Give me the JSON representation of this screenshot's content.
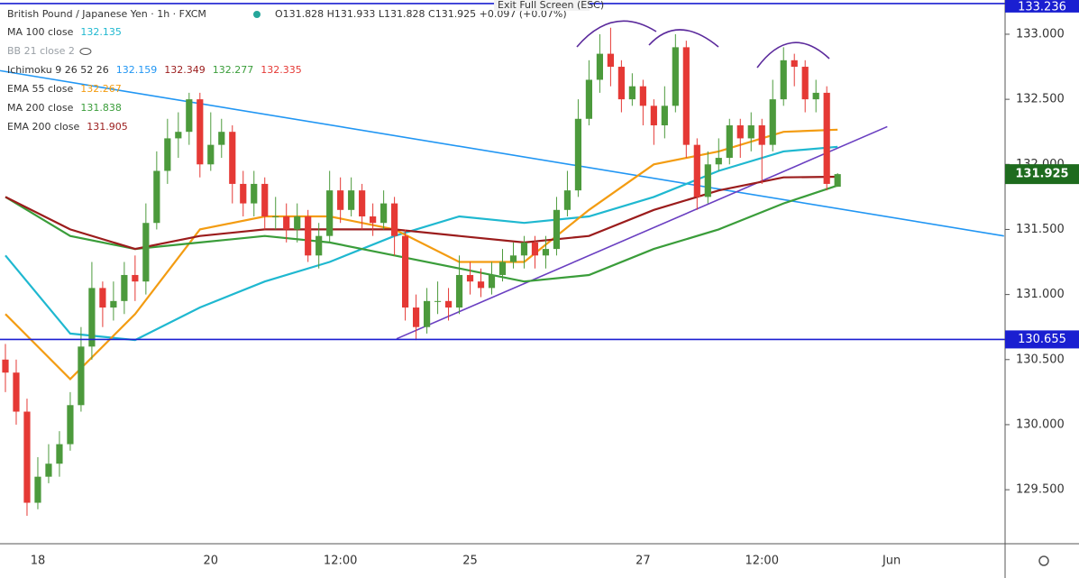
{
  "chart_data": {
    "type": "candlestick",
    "header": {
      "title": "British Pound / Japanese Yen · 1h · FXCM",
      "ohlc_text": "O131.828 H131.933 L131.828 C131.925 +0.097 (+0.07%)",
      "overlay": "Exit Full Screen (ESC)"
    },
    "categories": [
      null,
      null,
      null,
      "18",
      null,
      null,
      null,
      null,
      null,
      null,
      null,
      null,
      null,
      null,
      null,
      null,
      null,
      null,
      null,
      "20",
      null,
      null,
      null,
      null,
      null,
      null,
      null,
      null,
      null,
      null,
      null,
      "12:00",
      null,
      null,
      null,
      null,
      null,
      null,
      null,
      null,
      null,
      null,
      null,
      "25",
      null,
      null,
      null,
      null,
      null,
      null,
      null,
      null,
      null,
      null,
      null,
      null,
      null,
      null,
      null,
      "27",
      null,
      null,
      null,
      null,
      null,
      null,
      null,
      null,
      null,
      null,
      "12:00",
      null,
      null,
      null,
      null,
      null,
      null,
      null,
      null,
      null,
      null,
      null,
      "Jun",
      null,
      null,
      null,
      null,
      null,
      null,
      null,
      null,
      null,
      null
    ],
    "open": [
      130.5,
      130.4,
      130.1,
      129.4,
      129.6,
      129.7,
      129.85,
      130.15,
      130.6,
      131.05,
      130.9,
      130.95,
      131.15,
      131.1,
      131.55,
      131.95,
      132.2,
      132.25,
      132.5,
      132.0,
      132.15,
      132.25,
      131.85,
      131.7,
      131.85,
      131.6,
      131.6,
      131.5,
      131.6,
      131.3,
      131.45,
      131.8,
      131.65,
      131.8,
      131.6,
      131.55,
      131.7,
      131.45,
      130.9,
      130.75,
      130.95,
      130.95,
      130.9,
      131.15,
      131.1,
      131.05,
      131.15,
      131.25,
      131.3,
      131.4,
      131.3,
      131.35,
      131.65,
      131.8,
      132.35,
      132.65,
      132.85,
      132.75,
      132.5,
      132.6,
      132.45,
      132.3,
      132.45,
      132.9,
      132.15,
      131.75,
      132.0,
      132.05,
      132.3,
      132.2,
      132.3,
      132.15,
      132.5,
      132.8,
      132.75,
      132.5,
      132.55,
      131.828,
      null,
      null,
      null,
      null,
      null,
      null,
      null,
      null,
      null,
      null,
      null,
      null,
      null,
      null,
      null
    ],
    "high": [
      130.62,
      130.5,
      130.2,
      129.75,
      129.85,
      129.95,
      130.25,
      130.75,
      131.25,
      131.1,
      131.1,
      131.25,
      131.3,
      131.7,
      132.1,
      132.35,
      132.4,
      132.55,
      132.55,
      132.4,
      132.35,
      132.3,
      131.95,
      131.95,
      131.9,
      131.75,
      131.7,
      131.7,
      131.65,
      131.55,
      131.95,
      131.9,
      131.9,
      131.85,
      131.7,
      131.8,
      131.75,
      131.5,
      131.0,
      131.05,
      131.1,
      131.05,
      131.3,
      131.25,
      131.2,
      131.25,
      131.35,
      131.4,
      131.45,
      131.45,
      131.45,
      131.75,
      131.95,
      132.5,
      132.8,
      133.0,
      133.05,
      132.8,
      132.7,
      132.65,
      132.5,
      132.6,
      133.0,
      132.95,
      132.2,
      132.1,
      132.2,
      132.35,
      132.35,
      132.4,
      132.35,
      132.65,
      132.9,
      132.85,
      132.8,
      132.65,
      132.6,
      131.933,
      null,
      null,
      null,
      null,
      null,
      null,
      null,
      null,
      null,
      null,
      null,
      null,
      null,
      null,
      null
    ],
    "low": [
      130.25,
      130.0,
      129.3,
      129.35,
      129.55,
      129.6,
      129.8,
      130.1,
      130.5,
      130.75,
      130.8,
      130.85,
      130.95,
      131.0,
      131.5,
      131.85,
      132.05,
      132.15,
      131.9,
      131.95,
      132.05,
      131.7,
      131.6,
      131.6,
      131.5,
      131.5,
      131.4,
      131.4,
      131.25,
      131.2,
      131.4,
      131.55,
      131.6,
      131.5,
      131.45,
      131.5,
      131.3,
      130.8,
      130.65,
      130.7,
      130.85,
      130.8,
      130.85,
      131.0,
      130.98,
      131.0,
      131.1,
      131.2,
      131.2,
      131.2,
      131.2,
      131.3,
      131.6,
      131.75,
      132.3,
      132.55,
      132.6,
      132.4,
      132.45,
      132.3,
      132.15,
      132.2,
      132.4,
      132.05,
      131.65,
      131.7,
      131.95,
      132.0,
      132.05,
      132.1,
      131.85,
      132.1,
      132.45,
      132.6,
      132.4,
      132.4,
      131.8,
      131.828,
      null,
      null,
      null,
      null,
      null,
      null,
      null,
      null,
      null,
      null,
      null,
      null,
      null,
      null,
      null
    ],
    "close": [
      130.4,
      130.1,
      129.4,
      129.6,
      129.7,
      129.85,
      130.15,
      130.6,
      131.05,
      130.9,
      130.95,
      131.15,
      131.1,
      131.55,
      131.95,
      132.2,
      132.25,
      132.5,
      132.0,
      132.15,
      132.25,
      131.85,
      131.7,
      131.85,
      131.6,
      131.6,
      131.5,
      131.6,
      131.3,
      131.45,
      131.8,
      131.65,
      131.8,
      131.6,
      131.55,
      131.7,
      131.45,
      130.9,
      130.75,
      130.95,
      130.95,
      130.9,
      131.15,
      131.1,
      131.05,
      131.15,
      131.25,
      131.3,
      131.4,
      131.3,
      131.35,
      131.65,
      131.8,
      132.35,
      132.65,
      132.85,
      132.75,
      132.5,
      132.6,
      132.45,
      132.3,
      132.45,
      132.9,
      132.15,
      131.75,
      132.0,
      132.05,
      132.3,
      132.2,
      132.3,
      132.15,
      132.5,
      132.8,
      132.75,
      132.5,
      132.55,
      131.85,
      131.925,
      null,
      null,
      null,
      null,
      null,
      null,
      null,
      null,
      null,
      null,
      null,
      null,
      null,
      null,
      null
    ],
    "up_color": "#4c9a3c",
    "down_color": "#e53935",
    "indicators": [
      {
        "name": "MA 100 close",
        "color": "#1fb8d0",
        "last": 132.135,
        "x": [
          0,
          6,
          12,
          18,
          24,
          30,
          36,
          42,
          48,
          54,
          60,
          66,
          72,
          77
        ],
        "values": [
          131.3,
          130.7,
          130.65,
          130.9,
          131.1,
          131.25,
          131.45,
          131.6,
          131.55,
          131.6,
          131.75,
          131.95,
          132.1,
          132.135
        ]
      },
      {
        "name": "EMA 55 close",
        "color": "#f39c12",
        "last": 132.267,
        "x": [
          0,
          6,
          12,
          18,
          24,
          30,
          36,
          42,
          48,
          54,
          60,
          66,
          72,
          77
        ],
        "values": [
          130.85,
          130.35,
          130.85,
          131.5,
          131.6,
          131.6,
          131.5,
          131.25,
          131.25,
          131.65,
          132.0,
          132.1,
          132.25,
          132.267
        ]
      },
      {
        "name": "MA 200 close",
        "color": "#3a9d3a",
        "last": 131.838,
        "x": [
          0,
          6,
          12,
          18,
          24,
          30,
          36,
          42,
          48,
          54,
          60,
          66,
          72,
          77
        ],
        "values": [
          131.75,
          131.45,
          131.35,
          131.4,
          131.45,
          131.4,
          131.3,
          131.2,
          131.1,
          131.15,
          131.35,
          131.5,
          131.7,
          131.838
        ]
      },
      {
        "name": "EMA 200 close",
        "color": "#9b1c1c",
        "last": 131.905,
        "x": [
          0,
          6,
          12,
          18,
          24,
          30,
          36,
          42,
          48,
          54,
          60,
          66,
          72,
          77
        ],
        "values": [
          131.75,
          131.5,
          131.35,
          131.45,
          131.5,
          131.5,
          131.5,
          131.45,
          131.4,
          131.45,
          131.65,
          131.8,
          131.9,
          131.905
        ]
      }
    ],
    "legend_extra": [
      {
        "name": "BB 21 close 2",
        "color": "#9aa0a6"
      },
      {
        "name": "Ichimoku 9 26 52 26",
        "values": [
          132.159,
          132.349,
          132.277,
          132.335
        ],
        "colors": [
          "#2196f3",
          "#9b1c1c",
          "#3a9d3a",
          "#e53935"
        ]
      }
    ],
    "hlines": [
      {
        "value": 133.236,
        "color": "#1a1fd1"
      },
      {
        "value": 130.655,
        "color": "#1a1fd1"
      }
    ],
    "trendlines": [
      {
        "x": [
          -0.5,
          92.4
        ],
        "y": [
          132.72,
          131.45
        ],
        "color": "#2196f3"
      },
      {
        "x": [
          36.2,
          81.6
        ],
        "y": [
          130.66,
          132.29
        ],
        "color": "#6a3fc1"
      }
    ],
    "last_color": "#1e6b1e",
    "ylim": [
      129.085,
      133.263
    ],
    "yticks": [
      {
        "value": 129.5,
        "label": "129.500"
      },
      {
        "value": 130,
        "label": "130.000"
      },
      {
        "value": 130.5,
        "label": "130.500"
      },
      {
        "value": 131,
        "label": "131.000"
      },
      {
        "value": 131.5,
        "label": "131.500"
      },
      {
        "value": 132,
        "label": "132.000"
      },
      {
        "value": 132.5,
        "label": "132.500"
      },
      {
        "value": 133,
        "label": "133.000"
      }
    ]
  }
}
